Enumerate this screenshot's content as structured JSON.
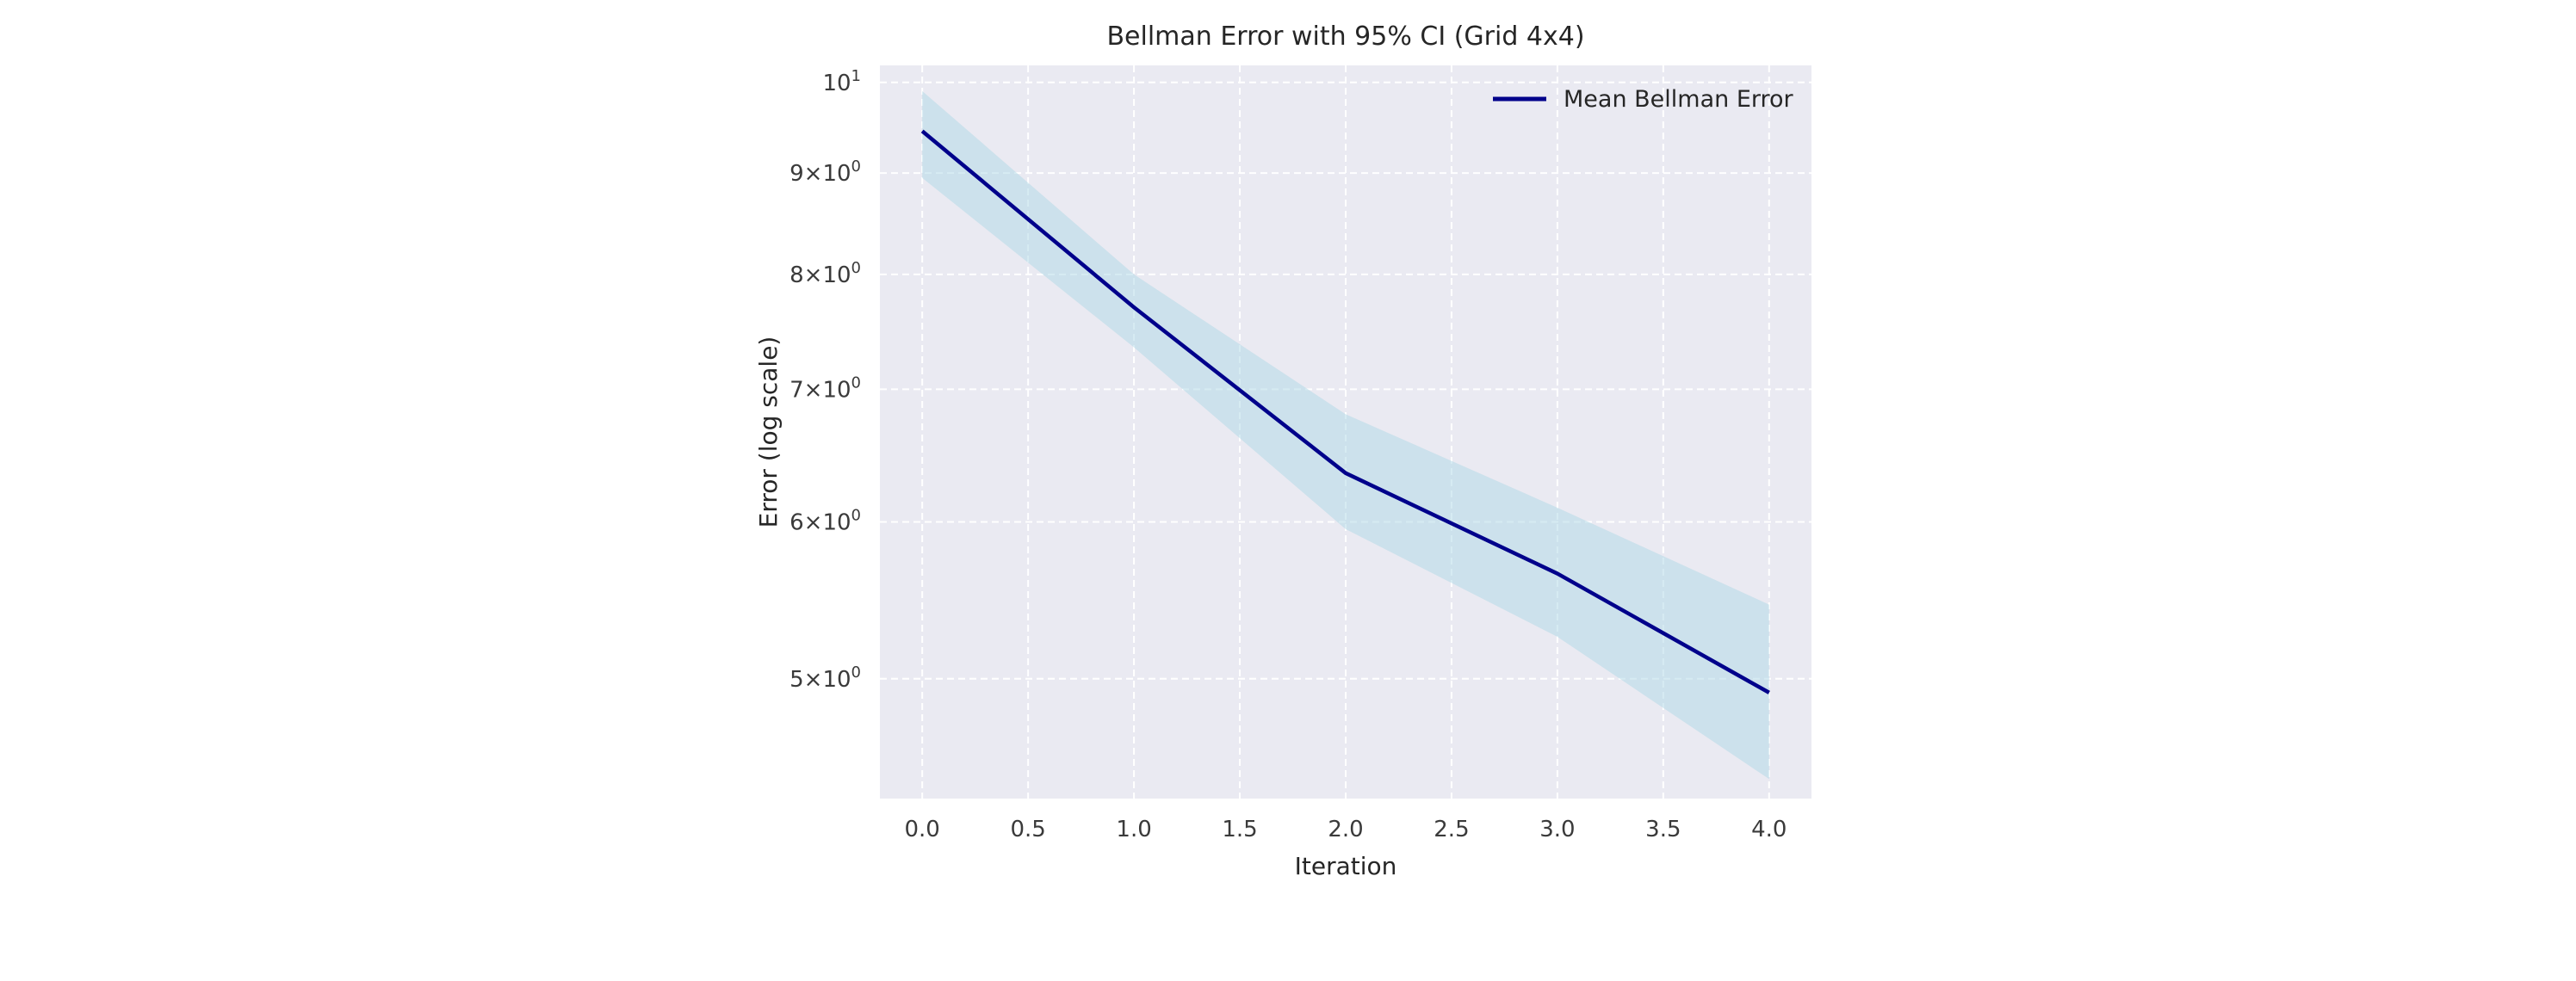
{
  "chart_data": {
    "type": "line",
    "title": "Bellman Error with 95% CI (Grid 4x4)",
    "xlabel": "Iteration",
    "ylabel": "Error (log scale)",
    "y_scale": "log",
    "xlim": [
      -0.2,
      4.2
    ],
    "ylim": [
      4.35,
      10.2
    ],
    "grid": true,
    "legend_position": "top-right",
    "x_ticks": [
      {
        "value": 0.0,
        "label": "0.0"
      },
      {
        "value": 0.5,
        "label": "0.5"
      },
      {
        "value": 1.0,
        "label": "1.0"
      },
      {
        "value": 1.5,
        "label": "1.5"
      },
      {
        "value": 2.0,
        "label": "2.0"
      },
      {
        "value": 2.5,
        "label": "2.5"
      },
      {
        "value": 3.0,
        "label": "3.0"
      },
      {
        "value": 3.5,
        "label": "3.5"
      },
      {
        "value": 4.0,
        "label": "4.0"
      }
    ],
    "y_ticks": [
      {
        "value": 5,
        "base": "5×10",
        "exp": "0"
      },
      {
        "value": 6,
        "base": "6×10",
        "exp": "0"
      },
      {
        "value": 7,
        "base": "7×10",
        "exp": "0"
      },
      {
        "value": 8,
        "base": "8×10",
        "exp": "0"
      },
      {
        "value": 9,
        "base": "9×10",
        "exp": "0"
      },
      {
        "value": 10,
        "base": "10",
        "exp": "1"
      }
    ],
    "x": [
      0,
      1,
      2,
      3,
      4
    ],
    "series": [
      {
        "name": "Mean Bellman Error",
        "values": [
          9.45,
          7.7,
          6.35,
          5.65,
          4.92
        ],
        "ci_lower": [
          8.95,
          7.35,
          5.95,
          5.25,
          4.45
        ],
        "ci_upper": [
          9.9,
          8.0,
          6.8,
          6.1,
          5.45
        ]
      }
    ],
    "colors": {
      "line": "#00008b",
      "band": "#add8e6",
      "plot_background": "#eaeaf2",
      "grid": "#ffffff"
    }
  }
}
